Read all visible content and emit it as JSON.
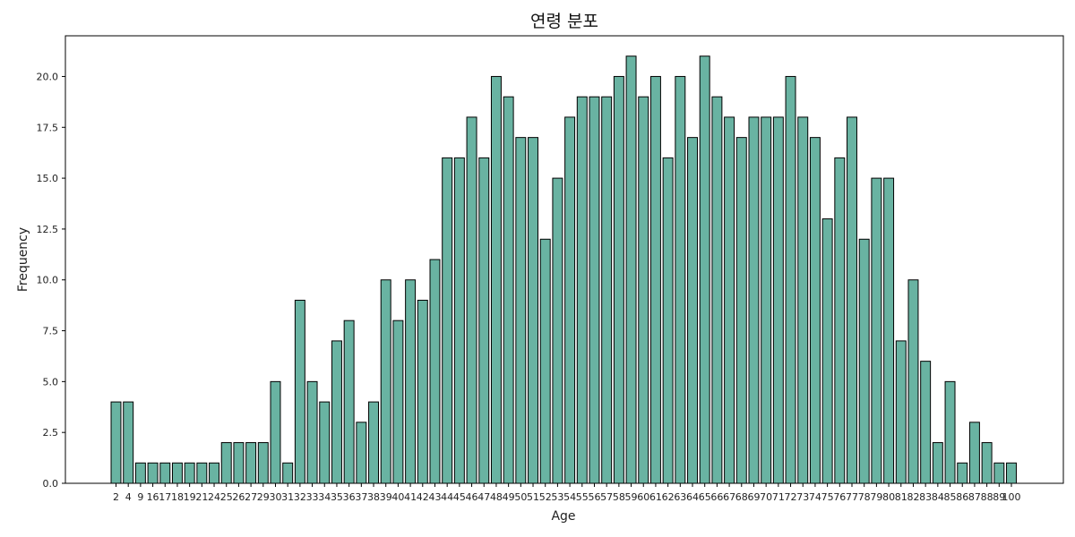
{
  "chart_data": {
    "type": "bar",
    "title": "연령 분포",
    "xlabel": "Age",
    "ylabel": "Frequency",
    "ylim": [
      0,
      22
    ],
    "yticks": [
      "0.0",
      "2.5",
      "5.0",
      "7.5",
      "10.0",
      "12.5",
      "15.0",
      "17.5",
      "20.0"
    ],
    "grid": false,
    "bar_color": "#69b3a2",
    "edge_color": "#000000",
    "categories": [
      "2",
      "4",
      "9",
      "16",
      "17",
      "18",
      "19",
      "21",
      "24",
      "25",
      "26",
      "27",
      "29",
      "30",
      "31",
      "32",
      "33",
      "34",
      "35",
      "36",
      "37",
      "38",
      "39",
      "40",
      "41",
      "42",
      "43",
      "44",
      "45",
      "46",
      "47",
      "48",
      "49",
      "50",
      "51",
      "52",
      "53",
      "54",
      "55",
      "56",
      "57",
      "58",
      "59",
      "60",
      "61",
      "62",
      "63",
      "64",
      "65",
      "66",
      "67",
      "68",
      "69",
      "70",
      "71",
      "72",
      "73",
      "74",
      "75",
      "76",
      "77",
      "78",
      "79",
      "80",
      "81",
      "82",
      "83",
      "84",
      "85",
      "86",
      "87",
      "88",
      "89",
      "100"
    ],
    "values": [
      4,
      4,
      1,
      1,
      1,
      1,
      1,
      1,
      1,
      2,
      2,
      2,
      2,
      5,
      1,
      9,
      5,
      4,
      7,
      8,
      3,
      4,
      10,
      8,
      10,
      9,
      11,
      16,
      16,
      18,
      16,
      20,
      19,
      17,
      17,
      12,
      15,
      18,
      19,
      19,
      19,
      20,
      21,
      19,
      20,
      16,
      20,
      17,
      21,
      19,
      18,
      17,
      18,
      18,
      18,
      20,
      18,
      17,
      13,
      16,
      18,
      12,
      15,
      15,
      7,
      10,
      6,
      2,
      5,
      1,
      3,
      2,
      1,
      1
    ]
  }
}
